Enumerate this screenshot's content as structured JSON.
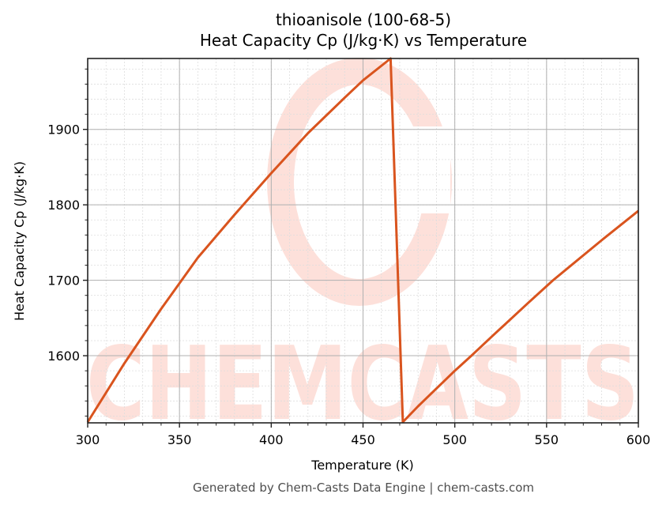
{
  "title": {
    "line1": "thioanisole (100-68-5)",
    "line2": "Heat Capacity Cp (J/kg·K) vs Temperature"
  },
  "footer": "Generated by Chem-Casts Data Engine | chem-casts.com",
  "watermark": {
    "text": "CHEMCASTS",
    "color": "#fde0da"
  },
  "colors": {
    "line": "#d9541e",
    "grid_major": "#b0b0b0",
    "grid_minor": "#dddddd",
    "axis": "#222222"
  },
  "chart_data": {
    "type": "line",
    "title": "thioanisole (100-68-5)\nHeat Capacity Cp (J/kg·K) vs Temperature",
    "xlabel": "Temperature (K)",
    "ylabel": "Heat Capacity Cp (J/kg·K)",
    "xlim": [
      300,
      600
    ],
    "ylim": [
      1511,
      1994
    ],
    "xticks": [
      300,
      350,
      400,
      450,
      500,
      550,
      600
    ],
    "yticks": [
      1600,
      1700,
      1800,
      1900
    ],
    "x_minor_step": 10,
    "y_minor_step": 20,
    "grid": true,
    "legend": null,
    "series": [
      {
        "name": "Cp",
        "x": [
          300,
          320,
          340,
          360,
          380,
          400,
          420,
          440,
          450,
          465,
          471.7,
          480,
          500,
          509,
          520,
          540,
          553.5,
          560,
          580,
          600
        ],
        "y": [
          1512,
          1590,
          1662,
          1730,
          1787,
          1842,
          1895,
          1942,
          1965,
          1994,
          1512,
          1533,
          1580,
          1600,
          1625,
          1670,
          1700,
          1713,
          1753,
          1792
        ]
      }
    ]
  }
}
